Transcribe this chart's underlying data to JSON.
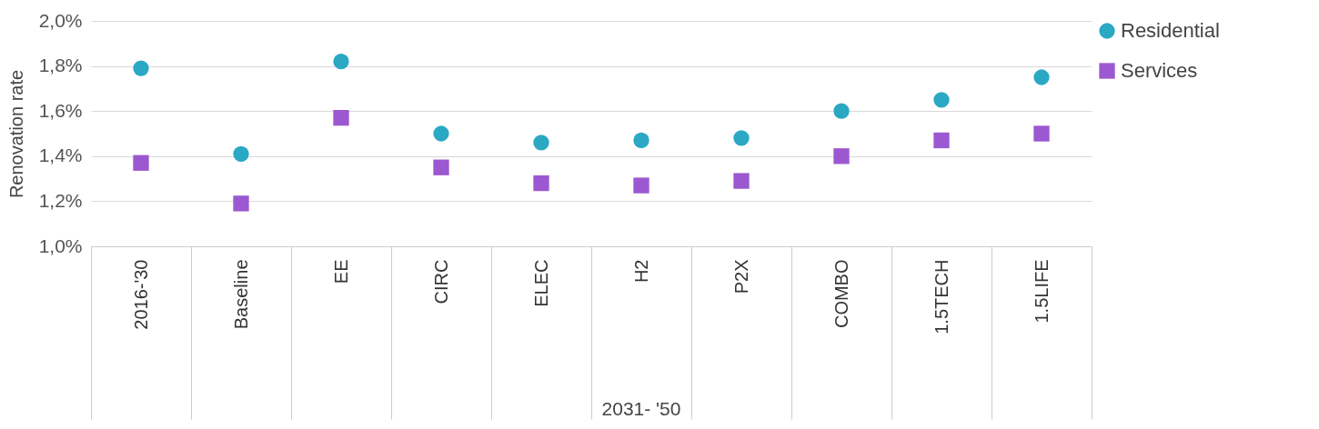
{
  "chart_data": {
    "type": "scatter",
    "ylabel": "Renovation rate",
    "categories": [
      "2016-'30",
      "Baseline",
      "EE",
      "CIRC",
      "ELEC",
      "H2",
      "P2X",
      "COMBO",
      "1.5TECH",
      "1.5LIFE"
    ],
    "series": [
      {
        "name": "Residential",
        "color": "#2aa8c4",
        "marker": "circle",
        "values": [
          1.79,
          1.41,
          1.82,
          1.5,
          1.46,
          1.47,
          1.48,
          1.6,
          1.65,
          1.75
        ]
      },
      {
        "name": "Services",
        "color": "#9c58d0",
        "marker": "square",
        "values": [
          1.37,
          1.19,
          1.57,
          1.35,
          1.28,
          1.27,
          1.29,
          1.4,
          1.47,
          1.5
        ]
      }
    ],
    "ylim": [
      1.0,
      2.0
    ],
    "yticks": [
      {
        "value": 1.0,
        "label": "1,0%"
      },
      {
        "value": 1.2,
        "label": "1,2%"
      },
      {
        "value": 1.4,
        "label": "1,4%"
      },
      {
        "value": 1.6,
        "label": "1,6%"
      },
      {
        "value": 1.8,
        "label": "1,8%"
      },
      {
        "value": 2.0,
        "label": "2,0%"
      }
    ],
    "grid": "y",
    "legend": "right",
    "annotations": [
      "2031- '50"
    ]
  }
}
